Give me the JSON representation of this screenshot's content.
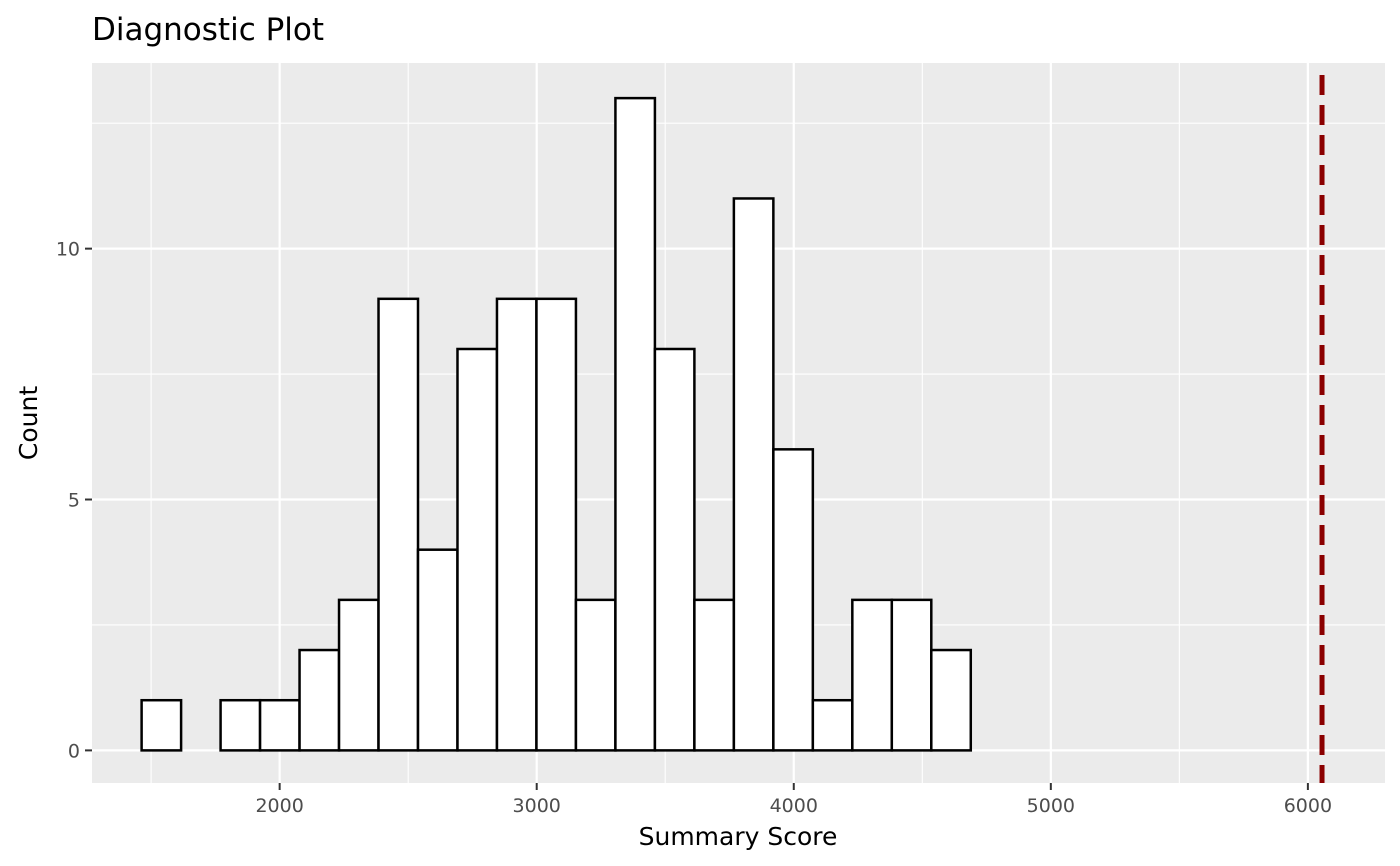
{
  "chart_data": {
    "type": "bar",
    "title": "Diagnostic Plot",
    "xlabel": "Summary Score",
    "ylabel": "Count",
    "xlim": [
      1270,
      6300
    ],
    "ylim": [
      -0.65,
      13.7
    ],
    "xticks": [
      2000,
      3000,
      4000,
      5000,
      6000
    ],
    "yticks": [
      0,
      5,
      10
    ],
    "bin_start": 1463,
    "bin_width": 153.6,
    "counts": [
      1,
      0,
      1,
      1,
      2,
      3,
      9,
      4,
      8,
      9,
      9,
      3,
      13,
      8,
      3,
      11,
      6,
      1,
      3,
      3,
      2,
      0,
      0,
      0,
      0,
      0,
      0,
      0
    ],
    "reference_line": {
      "x": 6055,
      "color": "#8b0000",
      "style": "dashed"
    },
    "panel_background": "#ebebeb",
    "grid": true
  }
}
